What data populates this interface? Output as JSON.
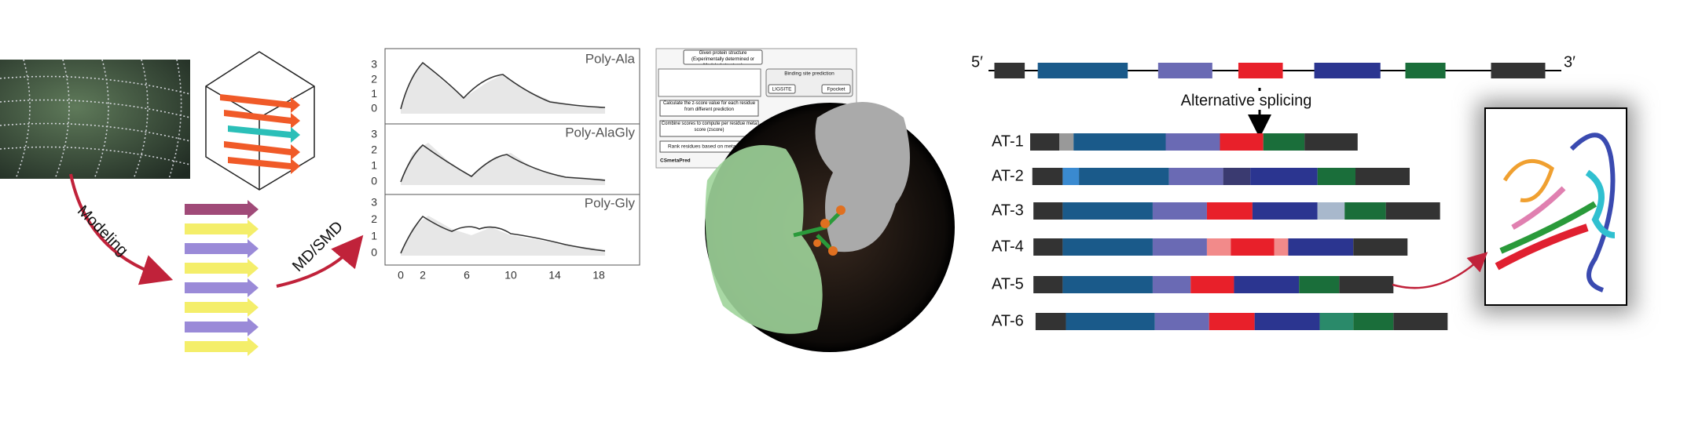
{
  "modeling": {
    "arrow_label_1": "Modeling",
    "arrow_label_2": "MD/SMD"
  },
  "plot": {
    "panels": [
      "Poly-Ala",
      "Poly-AlaGly",
      "Poly-Gly"
    ],
    "xticks": [
      0,
      2,
      6,
      10,
      14,
      18
    ],
    "yticks": [
      0,
      1,
      2,
      3
    ]
  },
  "flowchart": {
    "step_1": "Given protein structure (Experimentally determined or Modeled structure)",
    "binding": "Binding site prediction",
    "tool_1": "LIGSITE",
    "tool_2": "Fpocket",
    "step_2": "Calculate the z-score value for each residue from different prediction",
    "step_3": "Combine scores to compute per residue meta score (zscore)",
    "step_4": "Rank residues based on meta score",
    "footer": "CSmetaPred"
  },
  "splicing": {
    "five_prime": "5′",
    "three_prime": "3′",
    "arrow_label": "Alternative splicing",
    "isoforms": [
      "AT-1",
      "AT-2",
      "AT-3",
      "AT-4",
      "AT-5",
      "AT-6"
    ]
  }
}
